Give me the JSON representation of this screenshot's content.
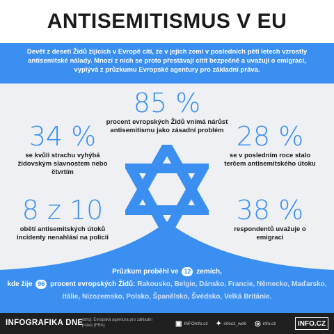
{
  "header": {
    "title": "ANTISEMITISMUS V EU"
  },
  "intro": {
    "text": "Devět z deseti Židů žijících v Evropě cítí, že v jejich zemi v posledních pěti letech vzrostly antisemitské nálady. Mnozí z nich se proto přestávají cítit bezpečně a uvažují o emigraci, vyplývá z průzkumu Evropské agentury pro základní práva."
  },
  "stats": {
    "s85": {
      "value": "85 %",
      "label": "procent evropských Židů vnímá nárůst antisemitismu jako zásadní problém"
    },
    "s34": {
      "value": "34 %",
      "label": "se kvůli strachu vyhýbá židovským slavnostem nebo čtvrtím"
    },
    "s28": {
      "value": "28 %",
      "label": "se v posledním roce stalo terčem antisemitského útoku"
    },
    "s810": {
      "value": "8 z 10",
      "label": "obětí antisemitských útoků incidenty nenahlásí na policii"
    },
    "s38": {
      "value": "38 %",
      "label": "respondentů uvažuje o emigraci"
    }
  },
  "survey": {
    "part1": "Průzkum proběhl ve",
    "countries_count": "12",
    "part2": "zemích,",
    "part3": "kde žije",
    "percent": "96",
    "part4": "procent evropských Židů:",
    "countries": "Rakousko, Belgie, Dánsko, Francie, Německo, Maďarsko, Itálie, Nizozemsko, Polsko, Španělsko, Švédsko, Velká Británie."
  },
  "footer": {
    "brand": "INFOGRAFIKA DNE",
    "source": "zdroj: Evropská agentura pro základní práva (FRA)",
    "facebook": "INFOinfo.cz",
    "twitter": "infocz_web",
    "instagram": "info.cz",
    "logo": "INFO.CZ",
    "icons": [
      "facebook-icon",
      "twitter-icon",
      "instagram-icon"
    ]
  },
  "colors": {
    "accent": "#3a8ff0",
    "background": "#eef0f3",
    "footer": "#1f1f1f"
  }
}
